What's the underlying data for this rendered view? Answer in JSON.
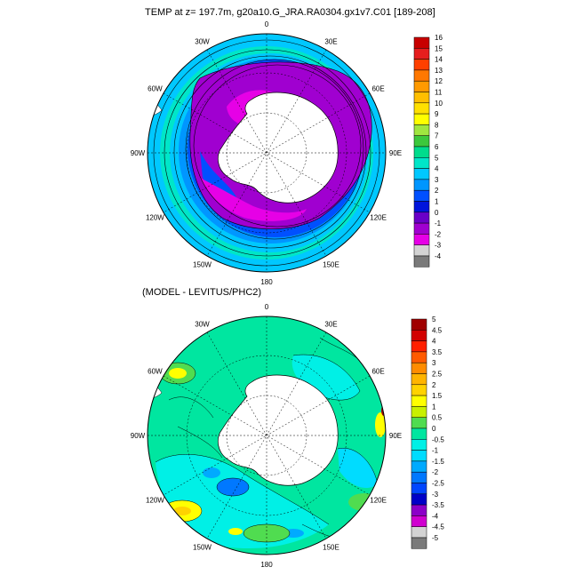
{
  "panel1": {
    "title": "TEMP at z= 197.7m, g20a10.G_JRA.RA0304.gx1v7.C01 [189-208]",
    "colorbar": {
      "labels": [
        "16",
        "15",
        "14",
        "13",
        "12",
        "11",
        "10",
        "9",
        "8",
        "7",
        "6",
        "5",
        "4",
        "3",
        "2",
        "1",
        "0",
        "-1",
        "-2",
        "-3",
        "-4"
      ],
      "colors": [
        "#c80000",
        "#e61e1e",
        "#ff4000",
        "#ff7800",
        "#ff9a00",
        "#ffbf00",
        "#ffe000",
        "#ffff00",
        "#a0e640",
        "#3cc83c",
        "#00dc8c",
        "#00e6c8",
        "#00c8ff",
        "#0096ff",
        "#0050ff",
        "#0014dc",
        "#6a00c8",
        "#a000d0",
        "#e600e6",
        "#d3d3d3",
        "#7a7a7a"
      ]
    },
    "lon_labels": [
      "0",
      "30E",
      "60E",
      "90E",
      "120E",
      "150E",
      "180",
      "150W",
      "120W",
      "90W",
      "60W",
      "30W"
    ]
  },
  "panel2": {
    "title": "(MODEL - LEVITUS/PHC2)",
    "colorbar": {
      "labels": [
        "5",
        "4.5",
        "4",
        "3.5",
        "3",
        "2.5",
        "2",
        "1.5",
        "1",
        "0.5",
        "0",
        "-0.5",
        "-1",
        "-1.5",
        "-2",
        "-2.5",
        "-3",
        "-3.5",
        "-4",
        "-4.5",
        "-5"
      ],
      "colors": [
        "#a00000",
        "#d20000",
        "#ff2000",
        "#ff5a00",
        "#ff8c00",
        "#ffb400",
        "#ffd200",
        "#ffff00",
        "#c8f000",
        "#50dc50",
        "#00e6a0",
        "#00f0e6",
        "#00dcff",
        "#00aaff",
        "#0078ff",
        "#0046ff",
        "#0000c8",
        "#8c00c8",
        "#d000d0",
        "#d3d3d3",
        "#7a7a7a"
      ]
    },
    "lon_labels": [
      "0",
      "30E",
      "60E",
      "90E",
      "120E",
      "150E",
      "180",
      "150W",
      "120W",
      "90W",
      "60W",
      "30W"
    ]
  }
}
